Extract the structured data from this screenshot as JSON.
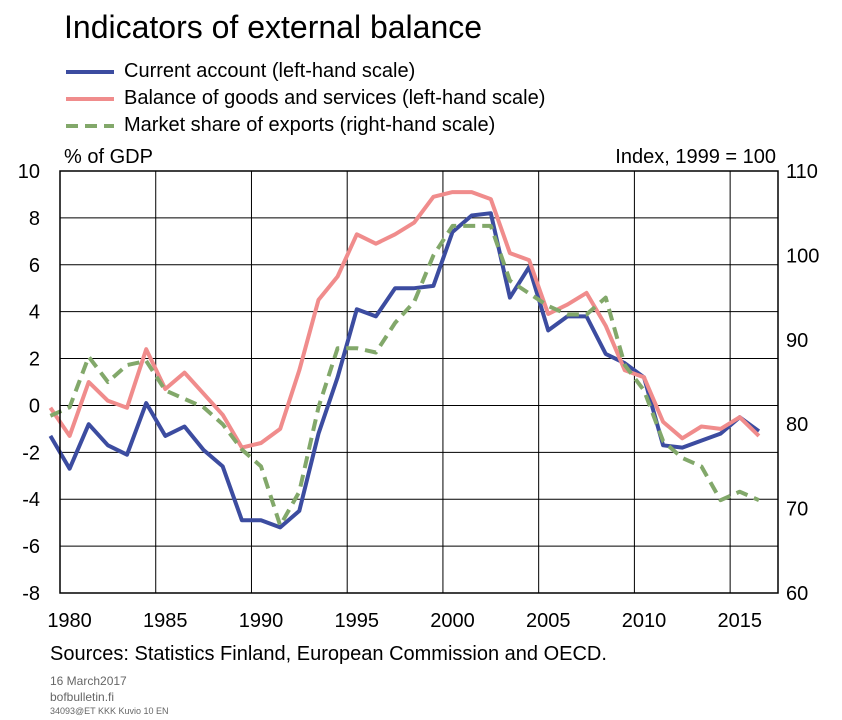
{
  "chart_data": {
    "type": "line",
    "title": "Indicators of external balance",
    "ylabel_left": "% of GDP",
    "ylabel_right": "Index, 1999 = 100",
    "xlim": [
      1979.5,
      2017
    ],
    "ylim_left": [
      -8,
      10
    ],
    "ylim_right": [
      60,
      110
    ],
    "x_ticks": [
      1980,
      1985,
      1990,
      1995,
      2000,
      2005,
      2010,
      2015
    ],
    "y_ticks_left": [
      -8,
      -6,
      -4,
      -2,
      0,
      2,
      4,
      6,
      8,
      10
    ],
    "y_ticks_right": [
      60,
      70,
      80,
      90,
      100,
      110
    ],
    "grid": true,
    "legend_position": "top-left",
    "x": [
      1979,
      1980,
      1981,
      1982,
      1983,
      1984,
      1985,
      1986,
      1987,
      1988,
      1989,
      1990,
      1991,
      1992,
      1993,
      1994,
      1995,
      1996,
      1997,
      1998,
      1999,
      2000,
      2001,
      2002,
      2003,
      2004,
      2005,
      2006,
      2007,
      2008,
      2009,
      2010,
      2011,
      2012,
      2013,
      2014,
      2015,
      2016
    ],
    "series": [
      {
        "name": "Current account (left-hand scale)",
        "axis": "left",
        "color": "#3c4ca0",
        "style": "solid",
        "values": [
          -1.3,
          -2.7,
          -0.8,
          -1.7,
          -2.1,
          0.1,
          -1.3,
          -0.9,
          -1.9,
          -2.6,
          -4.9,
          -4.9,
          -5.2,
          -4.5,
          -1.2,
          1.2,
          4.1,
          3.8,
          5.0,
          5.0,
          5.1,
          7.4,
          8.1,
          8.2,
          4.6,
          5.9,
          3.2,
          3.8,
          3.8,
          2.2,
          1.8,
          1.2,
          -1.7,
          -1.8,
          -1.5,
          -1.2,
          -0.5,
          -1.1
        ]
      },
      {
        "name": "Balance of goods and services (left-hand scale)",
        "axis": "left",
        "color": "#f08c8c",
        "style": "solid",
        "values": [
          -0.1,
          -1.3,
          1.0,
          0.2,
          -0.1,
          2.4,
          0.7,
          1.4,
          0.5,
          -0.4,
          -1.8,
          -1.6,
          -1.0,
          1.5,
          4.5,
          5.5,
          7.3,
          6.9,
          7.3,
          7.8,
          8.9,
          9.1,
          9.1,
          8.8,
          6.5,
          6.2,
          3.9,
          4.3,
          4.8,
          3.4,
          1.5,
          1.2,
          -0.7,
          -1.4,
          -0.9,
          -1.0,
          -0.5,
          -1.3
        ]
      },
      {
        "name": "Market share of exports (right-hand scale)",
        "axis": "right",
        "color": "#82a86a",
        "style": "dashed",
        "values": [
          81,
          82,
          88,
          85,
          87,
          87.5,
          84,
          83,
          82,
          80,
          77,
          75,
          68,
          72,
          82,
          89,
          89,
          88.5,
          92,
          94.5,
          100,
          103.5,
          103.5,
          103.5,
          97,
          95.5,
          94,
          93,
          93,
          95,
          87,
          84,
          78,
          76,
          75,
          71,
          72,
          71
        ]
      }
    ]
  },
  "footer": {
    "sources": "Sources: Statistics Finland, European Commission and OECD.",
    "date": "16 March2017",
    "site": "bofbulletin.fi",
    "code": "34093@ET KKK Kuvio 10 EN"
  }
}
